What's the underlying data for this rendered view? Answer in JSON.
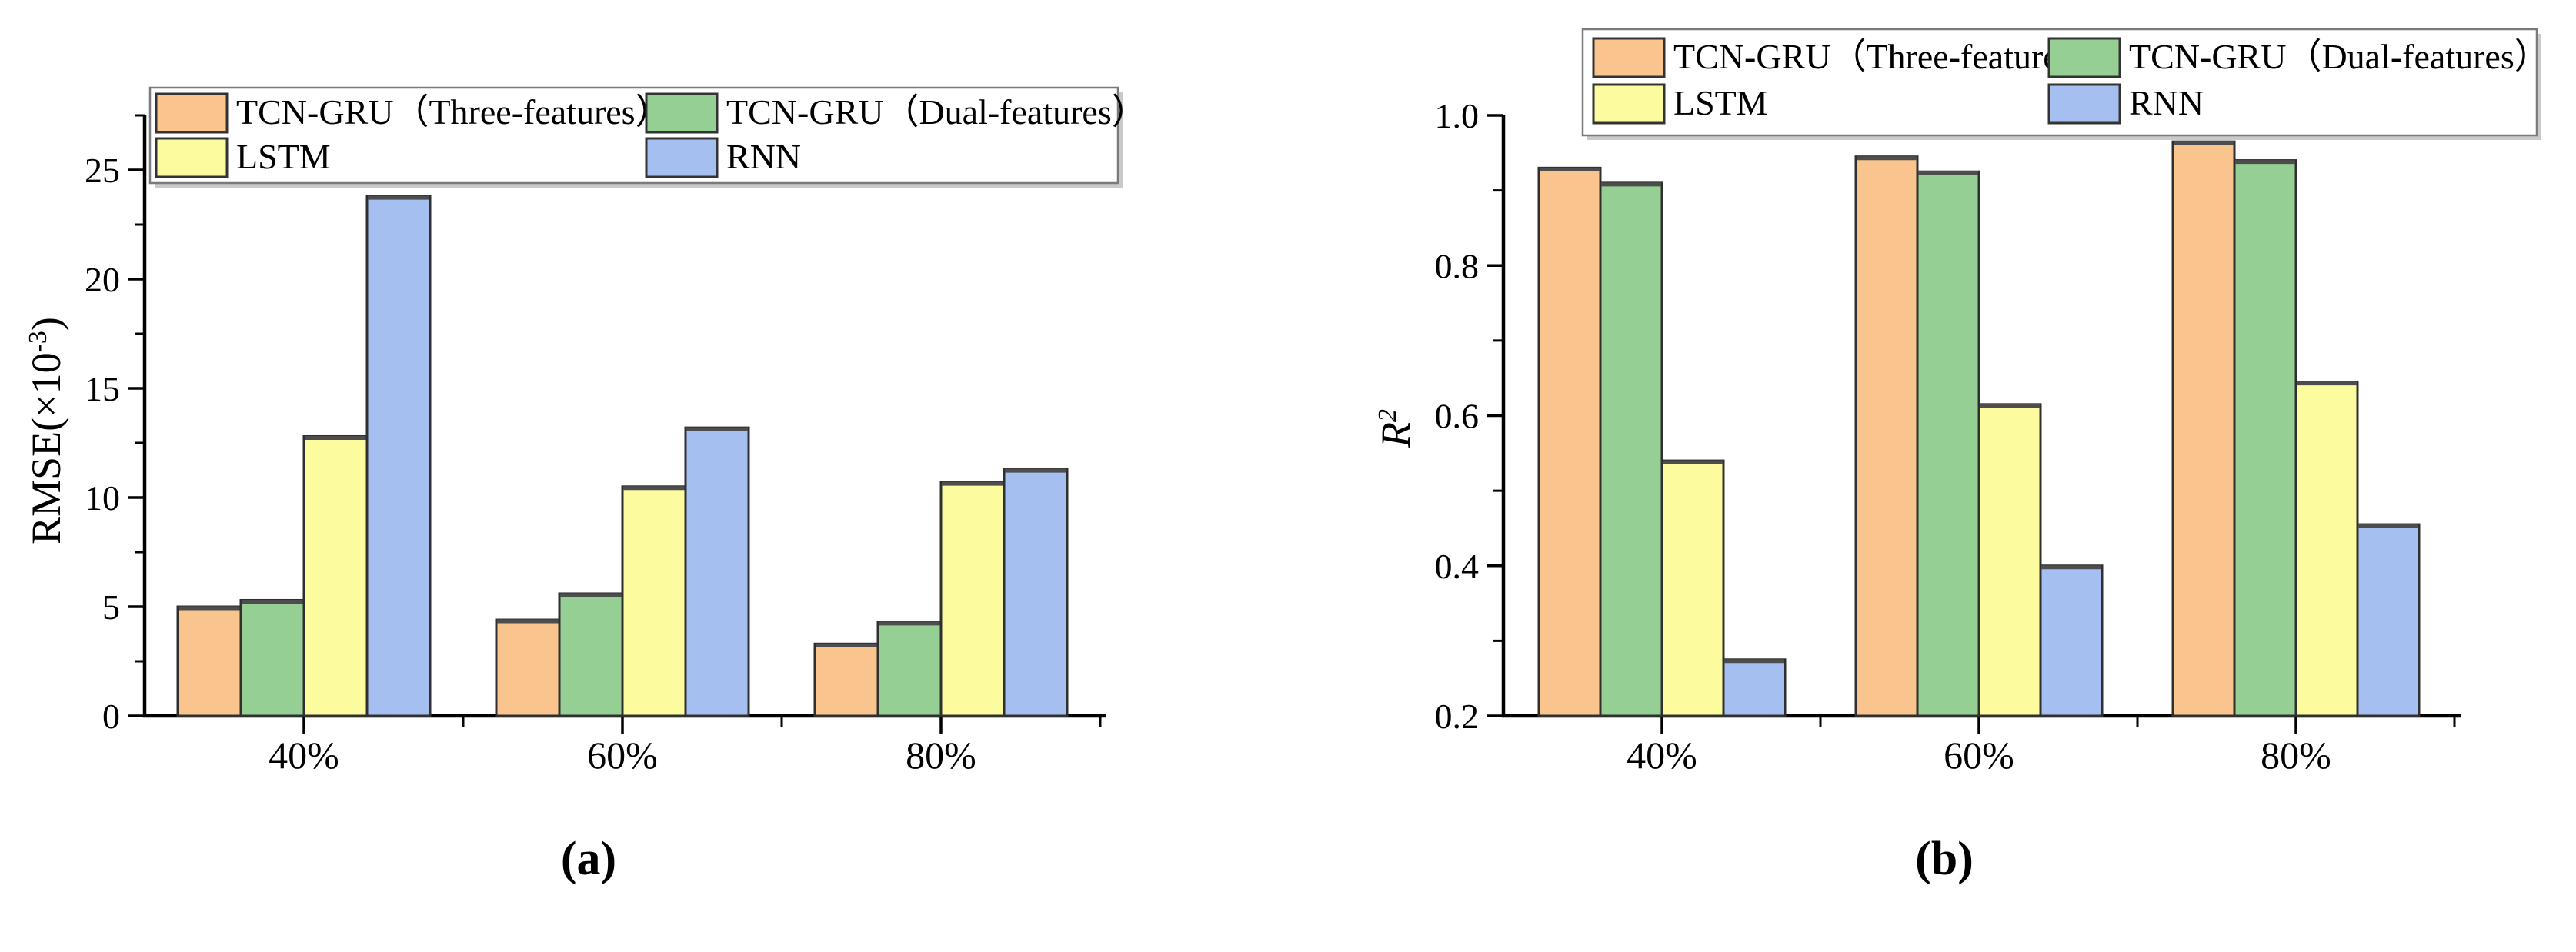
{
  "figure": {
    "background": "#ffffff",
    "panels": [
      {
        "id": "a",
        "caption": "(a)"
      },
      {
        "id": "b",
        "caption": "(b)"
      }
    ]
  },
  "chart_data": [
    {
      "panel": "a",
      "type": "bar",
      "title": "",
      "categories": [
        "40%",
        "60%",
        "80%"
      ],
      "series": [
        {
          "name": "TCN-GRU（Three-features）",
          "color": "#F9C48D",
          "values": [
            5.0,
            4.4,
            3.3
          ]
        },
        {
          "name": "TCN-GRU（Dual-features）",
          "color": "#95CF93",
          "values": [
            5.3,
            5.6,
            4.3
          ]
        },
        {
          "name": "LSTM",
          "color": "#FCFC9E",
          "values": [
            12.8,
            10.5,
            10.7
          ]
        },
        {
          "name": "RNN",
          "color": "#A5C0F0",
          "values": [
            23.8,
            13.2,
            11.3
          ]
        }
      ],
      "xlabel": "",
      "ylabel_text": "RMSE(×10⁻³)",
      "ylabel": {
        "base": "RMSE(×10",
        "sup": "-3",
        "end": ")",
        "italic": false
      },
      "ylim": [
        0,
        27.5
      ],
      "yticks": [
        0,
        5,
        10,
        15,
        20,
        25
      ],
      "ytick_labels": [
        "0",
        "5",
        "10",
        "15",
        "20",
        "25"
      ],
      "minor_step": 2.5,
      "baseline_value": 0,
      "grid": false,
      "legend_position": "inside-top",
      "bar_edge_color": "#2f2f2f",
      "axis_color": "#000000"
    },
    {
      "panel": "b",
      "type": "bar",
      "title": "",
      "categories": [
        "40%",
        "60%",
        "80%"
      ],
      "series": [
        {
          "name": "TCN-GRU（Three-features）",
          "color": "#F9C48D",
          "values": [
            0.93,
            0.945,
            0.965
          ]
        },
        {
          "name": "TCN-GRU（Dual-features）",
          "color": "#95CF93",
          "values": [
            0.91,
            0.925,
            0.94
          ]
        },
        {
          "name": "LSTM",
          "color": "#FCFC9E",
          "values": [
            0.54,
            0.615,
            0.645
          ]
        },
        {
          "name": "RNN",
          "color": "#A5C0F0",
          "values": [
            0.275,
            0.4,
            0.455
          ]
        }
      ],
      "xlabel": "",
      "ylabel_text": "R²",
      "ylabel": {
        "base": "R",
        "sup": "2",
        "end": "",
        "italic": true
      },
      "ylim": [
        0.2,
        1.0
      ],
      "yticks": [
        0.2,
        0.4,
        0.6,
        0.8,
        1.0
      ],
      "ytick_labels": [
        "0.2",
        "0.4",
        "0.6",
        "0.8",
        "1.0"
      ],
      "minor_step": 0.1,
      "baseline_value": 0.2,
      "grid": false,
      "legend_position": "above-plot",
      "bar_edge_color": "#2f2f2f",
      "axis_color": "#000000"
    }
  ]
}
